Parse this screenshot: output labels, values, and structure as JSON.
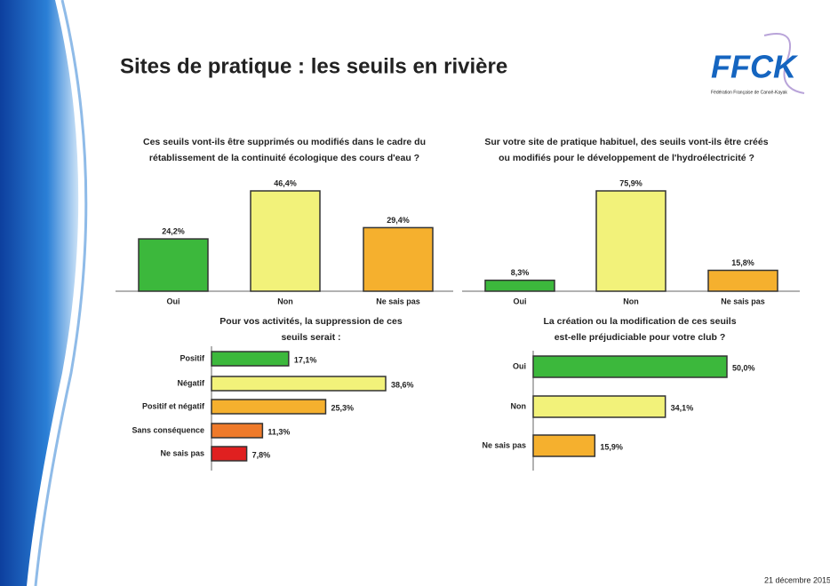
{
  "title": "Sites de pratique : les seuils en rivière",
  "logo": {
    "text": "FFCK",
    "subtitle": "Fédération Française de Canoë-Kayak"
  },
  "footer": "21 décembre 2015",
  "chart_data": [
    {
      "type": "bar",
      "title": [
        "Ces seuils vont-ils être supprimés ou modifiés dans le cadre du",
        "rétablissement de la continuité écologique des cours d'eau ?"
      ],
      "categories": [
        "Oui",
        "Non",
        "Ne sais pas"
      ],
      "values": [
        24.2,
        46.4,
        29.4
      ],
      "value_labels": [
        "24,2%",
        "46,4%",
        "29,4%"
      ],
      "colors": [
        "#3cb83c",
        "#f2f27a",
        "#f5b02e"
      ]
    },
    {
      "type": "bar",
      "title": [
        "Sur votre site de pratique habituel, des seuils vont-ils être créés",
        "ou modifiés pour le développement de l'hydroélectricité ?"
      ],
      "categories": [
        "Oui",
        "Non",
        "Ne sais pas"
      ],
      "values": [
        8.3,
        75.9,
        15.8
      ],
      "value_labels": [
        "8,3%",
        "75,9%",
        "15,8%"
      ],
      "colors": [
        "#3cb83c",
        "#f2f27a",
        "#f5b02e"
      ]
    },
    {
      "type": "barh",
      "title": [
        "Pour vos activités, la suppression de ces",
        "seuils serait :"
      ],
      "categories": [
        "Positif",
        "Négatif",
        "Positif et négatif",
        "Sans conséquence",
        "Ne sais pas"
      ],
      "values": [
        17.1,
        38.6,
        25.3,
        11.3,
        7.8
      ],
      "value_labels": [
        "17,1%",
        "38,6%",
        "25,3%",
        "11,3%",
        "7,8%"
      ],
      "colors": [
        "#3cb83c",
        "#f2f27a",
        "#f5b02e",
        "#ef7a2a",
        "#e02020"
      ]
    },
    {
      "type": "barh",
      "title": [
        "La création ou la modification de ces seuils",
        "est-elle préjudiciable pour votre club ?"
      ],
      "categories": [
        "Oui",
        "Non",
        "Ne sais pas"
      ],
      "values": [
        50.0,
        34.1,
        15.9
      ],
      "value_labels": [
        "50,0%",
        "34,1%",
        "15,9%"
      ],
      "colors": [
        "#3cb83c",
        "#f2f27a",
        "#f5b02e"
      ]
    }
  ]
}
